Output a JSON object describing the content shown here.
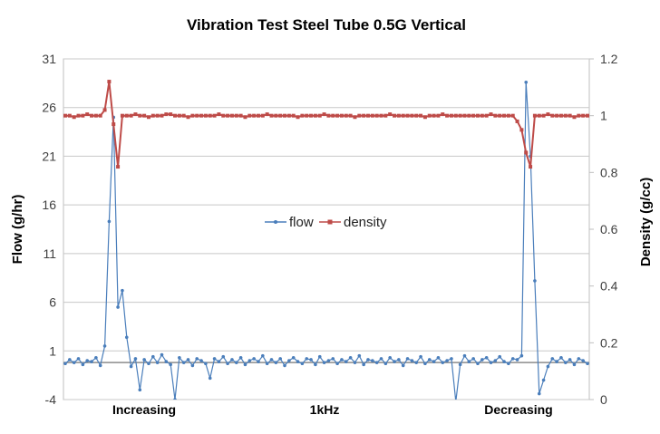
{
  "chart_data": {
    "type": "line",
    "title": "Vibration Test  Steel Tube 0.5G Vertical",
    "ylabel": "Flow (g/hr)",
    "y2label": "Density (g/cc)",
    "ylim": [
      -4,
      31
    ],
    "y2lim": [
      0,
      1.2
    ],
    "yticks": [
      "31",
      "26",
      "21",
      "16",
      "11",
      "6",
      "1",
      "-4"
    ],
    "y2ticks": [
      "1.2",
      "1",
      "0.8",
      "0.6",
      "0.4",
      "0.2",
      "0"
    ],
    "xtick_labels": [
      "Increasing",
      "1kHz",
      "Decreasing"
    ],
    "grid": true,
    "legend_position": "center",
    "colors": {
      "flow": "#4a7ebb",
      "density": "#be4b48"
    },
    "series": [
      {
        "name": "flow",
        "axis": "left",
        "values": [
          -0.3,
          0.1,
          -0.2,
          0.2,
          -0.4,
          0,
          -0.1,
          0.3,
          -0.5,
          1.5,
          14.3,
          25,
          5.5,
          7.2,
          2.4,
          -0.6,
          0.2,
          -3,
          0.1,
          -0.3,
          0.4,
          -0.2,
          0.6,
          -0.1,
          -0.4,
          -4,
          0.3,
          -0.2,
          0.1,
          -0.5,
          0.2,
          0,
          -0.3,
          -1.8,
          0.2,
          -0.1,
          0.4,
          -0.3,
          0.1,
          -0.2,
          0.3,
          -0.4,
          0,
          0.2,
          -0.1,
          0.5,
          -0.3,
          0.1,
          -0.2,
          0.2,
          -0.5,
          0,
          0.3,
          -0.1,
          -0.3,
          0.2,
          0.1,
          -0.4,
          0.4,
          -0.2,
          0,
          0.2,
          -0.3,
          0.1,
          -0.1,
          0.3,
          -0.2,
          0.5,
          -0.4,
          0.1,
          0,
          -0.2,
          0.2,
          -0.3,
          0.3,
          -0.1,
          0.1,
          -0.5,
          0.2,
          0,
          -0.2,
          0.4,
          -0.3,
          0.1,
          -0.1,
          0.3,
          -0.2,
          0,
          0.2,
          -4.2,
          -0.4,
          0.5,
          -0.1,
          0.2,
          -0.3,
          0.1,
          0.3,
          -0.2,
          0,
          0.4,
          -0.1,
          -0.3,
          0.2,
          0.1,
          0.5,
          28.6,
          21,
          8.2,
          -3.4,
          -2,
          -0.6,
          0.2,
          -0.1,
          0.3,
          -0.2,
          0.1,
          -0.4,
          0.2,
          0,
          -0.3
        ]
      },
      {
        "name": "density",
        "axis": "right",
        "values": [
          1,
          1,
          0.995,
          1,
          1,
          1.005,
          1,
          1,
          1,
          1.02,
          1.12,
          0.97,
          0.82,
          1,
          1,
          1,
          1.005,
          1,
          1,
          0.995,
          1,
          1,
          1,
          1.005,
          1.005,
          1,
          1,
          1,
          0.995,
          1,
          1,
          1,
          1,
          1,
          1,
          1.005,
          1,
          1,
          1,
          1,
          1,
          0.995,
          1,
          1,
          1,
          1,
          1.005,
          1,
          1,
          1,
          1,
          1,
          1,
          0.995,
          1,
          1,
          1,
          1,
          1,
          1.005,
          1,
          1,
          1,
          1,
          1,
          1,
          0.995,
          1,
          1,
          1,
          1,
          1,
          1,
          1,
          1.005,
          1,
          1,
          1,
          1,
          1,
          1,
          1,
          0.995,
          1,
          1,
          1,
          1.005,
          1,
          1,
          1,
          1,
          1,
          1,
          1,
          1,
          1,
          1,
          1.005,
          1,
          1,
          1,
          1,
          1,
          0.98,
          0.95,
          0.87,
          0.82,
          1,
          1,
          1,
          1.005,
          1,
          1,
          1,
          1,
          1,
          0.995,
          1,
          1,
          1
        ]
      }
    ]
  }
}
